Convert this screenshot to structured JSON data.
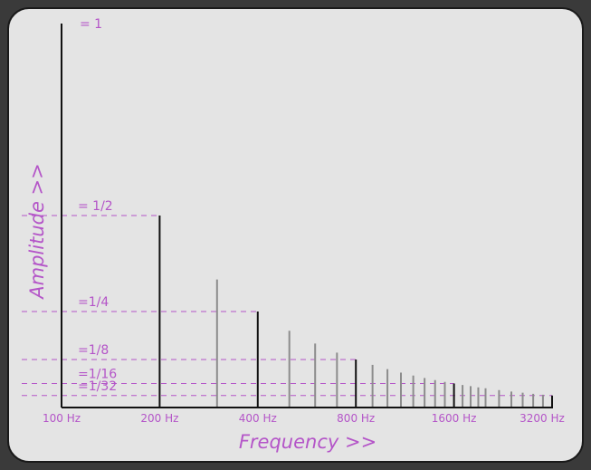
{
  "chart_data": {
    "type": "bar",
    "title": "",
    "xlabel": "Frequency >>",
    "ylabel": "Amplitude >>",
    "x_scale": "log2",
    "fundamental_hz": 100,
    "harmonics": [
      {
        "n": 1,
        "x": 100,
        "amplitude": 1
      },
      {
        "n": 2,
        "x": 200,
        "amplitude": 0.5
      },
      {
        "n": 3,
        "x": 300,
        "amplitude": 0.3333
      },
      {
        "n": 4,
        "x": 400,
        "amplitude": 0.25
      },
      {
        "n": 5,
        "x": 500,
        "amplitude": 0.2
      },
      {
        "n": 6,
        "x": 600,
        "amplitude": 0.1667
      },
      {
        "n": 7,
        "x": 700,
        "amplitude": 0.1429
      },
      {
        "n": 8,
        "x": 800,
        "amplitude": 0.125
      },
      {
        "n": 9,
        "x": 900,
        "amplitude": 0.1111
      },
      {
        "n": 10,
        "x": 1000,
        "amplitude": 0.1
      },
      {
        "n": 11,
        "x": 1100,
        "amplitude": 0.0909
      },
      {
        "n": 12,
        "x": 1200,
        "amplitude": 0.0833
      },
      {
        "n": 13,
        "x": 1300,
        "amplitude": 0.0769
      },
      {
        "n": 14,
        "x": 1400,
        "amplitude": 0.0714
      },
      {
        "n": 15,
        "x": 1500,
        "amplitude": 0.0667
      },
      {
        "n": 16,
        "x": 1600,
        "amplitude": 0.0625
      },
      {
        "n": 17,
        "x": 1700,
        "amplitude": 0.0588
      },
      {
        "n": 18,
        "x": 1800,
        "amplitude": 0.0556
      },
      {
        "n": 19,
        "x": 1900,
        "amplitude": 0.0526
      },
      {
        "n": 20,
        "x": 2000,
        "amplitude": 0.05
      },
      {
        "n": 22,
        "x": 2200,
        "amplitude": 0.0455
      },
      {
        "n": 24,
        "x": 2400,
        "amplitude": 0.0417
      },
      {
        "n": 26,
        "x": 2600,
        "amplitude": 0.0385
      },
      {
        "n": 28,
        "x": 2800,
        "amplitude": 0.0357
      },
      {
        "n": 30,
        "x": 3000,
        "amplitude": 0.0333
      },
      {
        "n": 32,
        "x": 3200,
        "amplitude": 0.03125
      }
    ],
    "x_tick_labels": [
      {
        "x": 100,
        "label": "100 Hz"
      },
      {
        "x": 200,
        "label": "200 Hz"
      },
      {
        "x": 400,
        "label": "400 Hz"
      },
      {
        "x": 800,
        "label": "800 Hz"
      },
      {
        "x": 1600,
        "label": "1600 Hz"
      },
      {
        "x": 3200,
        "label": "3200 Hz"
      }
    ],
    "amplitude_labels": [
      {
        "value": 1,
        "label": "= 1",
        "dashed": false
      },
      {
        "value": 0.5,
        "label": "= 1/2",
        "dashed": true
      },
      {
        "value": 0.25,
        "label": "=1/4",
        "dashed": true
      },
      {
        "value": 0.125,
        "label": "=1/8",
        "dashed": true
      },
      {
        "value": 0.0625,
        "label": "=1/16",
        "dashed": true
      },
      {
        "value": 0.03125,
        "label": "=1/32",
        "dashed": true
      }
    ],
    "colors": {
      "octave_bar": "#111111",
      "other_bar": "#8c8c8c",
      "label": "#b455c8",
      "background": "#e4e4e4"
    }
  }
}
